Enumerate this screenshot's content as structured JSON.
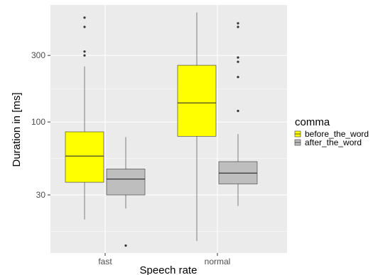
{
  "chart_data": {
    "type": "boxplot",
    "title": "",
    "xlabel": "Speech rate",
    "ylabel": "Duration in [ms]",
    "y_scale": "log10",
    "ylim": [
      11.5,
      690
    ],
    "yticks": [
      30,
      100,
      300
    ],
    "ytick_labels": [
      "30",
      "100",
      "300"
    ],
    "categories": [
      "fast",
      "normal"
    ],
    "legend": {
      "title": "comma",
      "position": "right",
      "entries": [
        {
          "name": "before_the_word",
          "color": "#FFFF00"
        },
        {
          "name": "after_the_word",
          "color": "#BEBEBE"
        }
      ]
    },
    "grid": true,
    "series": [
      {
        "name": "before_the_word",
        "color": "#FFFF00",
        "boxes": [
          {
            "category": "fast",
            "whisker_low": 20,
            "q1": 37,
            "median": 57,
            "q3": 85,
            "whisker_high": 250,
            "outliers": [
              560,
              480,
              320,
              300
            ]
          },
          {
            "category": "normal",
            "whisker_low": 14,
            "q1": 79,
            "median": 137,
            "q3": 255,
            "whisker_high": 610,
            "outliers": []
          }
        ]
      },
      {
        "name": "after_the_word",
        "color": "#BEBEBE",
        "boxes": [
          {
            "category": "fast",
            "whisker_low": 24,
            "q1": 30,
            "median": 39,
            "q3": 46,
            "whisker_high": 78,
            "outliers": [
              13
            ]
          },
          {
            "category": "normal",
            "whisker_low": 25,
            "q1": 36,
            "median": 43,
            "q3": 52,
            "whisker_high": 82,
            "outliers": [
              510,
              480,
              290,
              270,
              210,
              120
            ]
          }
        ]
      }
    ]
  },
  "colors": {
    "panel_background": "#EBEBEB",
    "grid_major": "#FFFFFF",
    "box_outline": "#333333",
    "outlier": "#333333"
  }
}
